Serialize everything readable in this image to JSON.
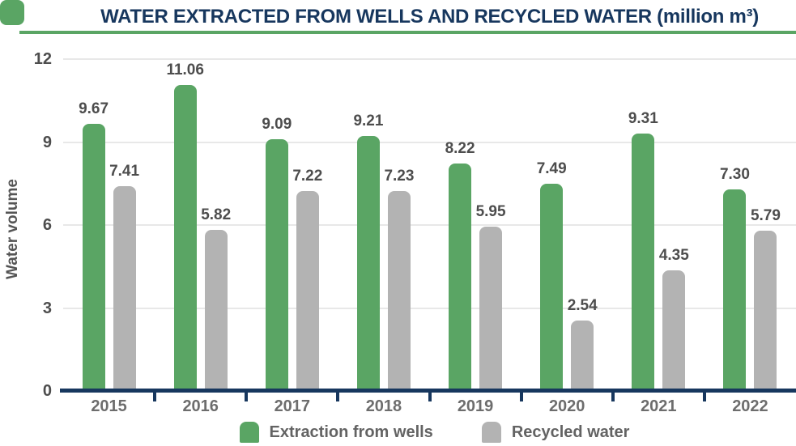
{
  "header": {
    "title": "WATER EXTRACTED FROM WELLS AND RECYCLED WATER (million m³)"
  },
  "chart_data": {
    "type": "bar",
    "title": "WATER EXTRACTED FROM WELLS AND RECYCLED WATER (million m³)",
    "categories": [
      "2015",
      "2016",
      "2017",
      "2018",
      "2019",
      "2020",
      "2021",
      "2022"
    ],
    "series": [
      {
        "name": "Extraction from wells",
        "color": "#5aa564",
        "values": [
          9.67,
          11.06,
          9.09,
          9.21,
          8.22,
          7.49,
          9.31,
          7.3
        ]
      },
      {
        "name": "Recycled water",
        "color": "#b3b3b3",
        "values": [
          7.41,
          5.82,
          7.22,
          7.23,
          5.95,
          2.54,
          4.35,
          5.79
        ]
      }
    ],
    "xlabel": "",
    "ylabel": "Water volume",
    "ylim": [
      0,
      12
    ],
    "yticks": [
      0,
      3,
      6,
      9,
      12
    ],
    "grid": true,
    "legend_position": "bottom",
    "value_label_decimals": 2
  },
  "colors": {
    "accent_green": "#5aa564",
    "bar_gray": "#b3b3b3",
    "navy": "#17375e",
    "value_label": "#4d4d4d",
    "category_label": "#6d6d6d",
    "gridline": "#e8e8e8"
  }
}
